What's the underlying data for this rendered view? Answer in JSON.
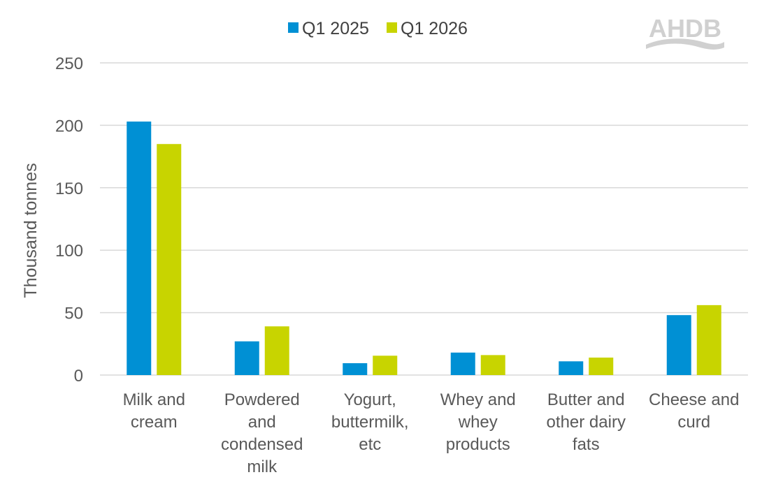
{
  "chart_data": {
    "type": "bar",
    "title": "",
    "xlabel": "",
    "ylabel": "Thousand tonnes",
    "ylim": [
      0,
      250
    ],
    "yticks": [
      0,
      50,
      100,
      150,
      200,
      250
    ],
    "grid": true,
    "legend_position": "top",
    "categories": [
      [
        "Milk and",
        "cream"
      ],
      [
        "Powdered",
        "and",
        "condensed",
        "milk"
      ],
      [
        "Yogurt,",
        "buttermilk,",
        "etc"
      ],
      [
        "Whey and",
        "whey",
        "products"
      ],
      [
        "Butter and",
        "other dairy",
        "fats"
      ],
      [
        "Cheese and",
        "curd"
      ]
    ],
    "series": [
      {
        "name": "Q1 2025",
        "color": "#0090d4",
        "values": [
          203,
          27,
          9.5,
          18,
          11,
          48
        ]
      },
      {
        "name": "Q1 2026",
        "color": "#c8d400",
        "values": [
          185,
          39,
          15.5,
          16,
          14,
          56
        ]
      }
    ]
  },
  "logo": {
    "text": "AHDB",
    "icon": "ahdb-logo"
  },
  "colors": {
    "grid": "#d9d9d9",
    "text": "#595959"
  }
}
